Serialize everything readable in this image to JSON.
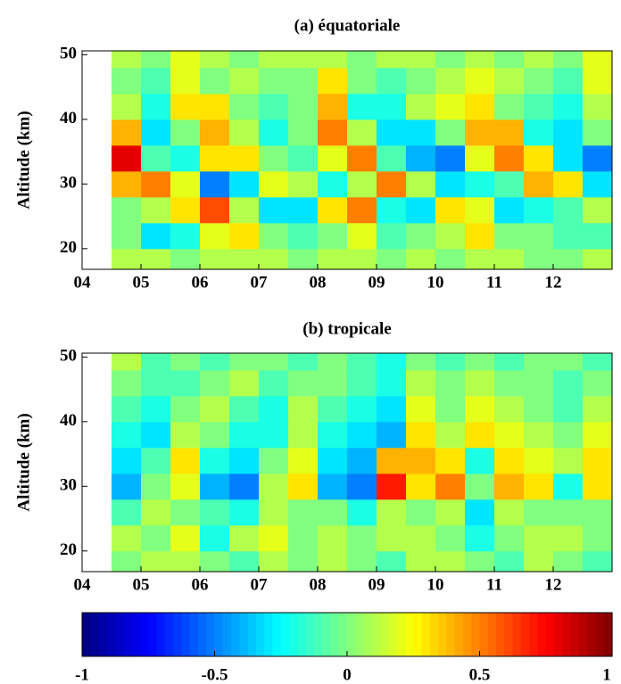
{
  "chart_data": [
    {
      "type": "heatmap",
      "title": "(a) équatoriale",
      "ylabel": "Altitude (km)",
      "x": [
        2004.75,
        2005.25,
        2005.75,
        2006.25,
        2006.75,
        2007.25,
        2007.75,
        2008.25,
        2008.75,
        2009.25,
        2009.75,
        2010.25,
        2010.75,
        2011.25,
        2011.75,
        2012.25,
        2012.75
      ],
      "y": [
        18,
        22,
        26,
        30,
        34,
        38,
        42,
        46,
        50
      ],
      "z": [
        [
          0.1,
          0.1,
          0,
          0.1,
          0.1,
          0.1,
          0,
          0.1,
          0.1,
          0,
          0.1,
          0,
          0.1,
          0.1,
          0,
          0,
          0.1
        ],
        [
          0,
          -0.3,
          -0.2,
          0.2,
          0.3,
          0,
          -0.1,
          0,
          0.2,
          -0.1,
          0,
          0.1,
          0.3,
          0,
          0,
          -0.1,
          -0.1
        ],
        [
          0,
          0.1,
          0.3,
          0.6,
          0.1,
          -0.3,
          -0.3,
          0.3,
          0.5,
          -0.2,
          -0.3,
          0.3,
          0.2,
          -0.3,
          -0.2,
          -0.1,
          0.1
        ],
        [
          0.4,
          0.5,
          0.2,
          -0.5,
          -0.3,
          0.2,
          0.1,
          -0.2,
          0.1,
          0.5,
          0.1,
          -0.3,
          -0.2,
          -0.1,
          0.4,
          0.3,
          -0.3
        ],
        [
          0.8,
          -0.1,
          -0.2,
          0.3,
          0.3,
          0,
          -0.1,
          0.2,
          0.5,
          -0.1,
          -0.4,
          -0.5,
          0.2,
          0.5,
          0.3,
          -0.3,
          -0.5
        ],
        [
          0.4,
          -0.3,
          0,
          0.4,
          0.1,
          -0.2,
          0,
          0.5,
          0.1,
          -0.3,
          -0.3,
          0,
          0.4,
          0.4,
          -0.2,
          -0.3,
          0
        ],
        [
          0.1,
          -0.2,
          0.3,
          0.3,
          0,
          -0.1,
          0,
          0.4,
          -0.2,
          -0.2,
          0.1,
          0.2,
          0.3,
          0,
          -0.1,
          -0.2,
          0.1
        ],
        [
          0,
          -0.1,
          0.2,
          0,
          0.1,
          0,
          0,
          0.3,
          0,
          -0.1,
          0,
          0.1,
          0.2,
          0.1,
          0,
          -0.1,
          0.2
        ],
        [
          0.1,
          0,
          0.2,
          0.1,
          0,
          0.1,
          0.1,
          0.1,
          0,
          0.1,
          0.1,
          0,
          0.1,
          0,
          0.1,
          0,
          0.2
        ]
      ],
      "xlim": [
        2004,
        2013
      ],
      "ylim": [
        16.8,
        50.6
      ],
      "xticks": [
        {
          "value": 2004,
          "label": "04"
        },
        {
          "value": 2005,
          "label": "05"
        },
        {
          "value": 2006,
          "label": "06"
        },
        {
          "value": 2007,
          "label": "07"
        },
        {
          "value": 2008,
          "label": "08"
        },
        {
          "value": 2009,
          "label": "09"
        },
        {
          "value": 2010,
          "label": "10"
        },
        {
          "value": 2011,
          "label": "11"
        },
        {
          "value": 2012,
          "label": "12"
        }
      ],
      "yticks": [
        20,
        30,
        40,
        50
      ],
      "colormap": "jet",
      "clim": [
        -1,
        1
      ]
    },
    {
      "type": "heatmap",
      "title": "(b) tropicale",
      "ylabel": "Altitude (km)",
      "x": [
        2004.75,
        2005.25,
        2005.75,
        2006.25,
        2006.75,
        2007.25,
        2007.75,
        2008.25,
        2008.75,
        2009.25,
        2009.75,
        2010.25,
        2010.75,
        2011.25,
        2011.75,
        2012.25,
        2012.75
      ],
      "y": [
        18,
        22,
        26,
        30,
        34,
        38,
        42,
        46,
        50
      ],
      "z": [
        [
          0,
          0.1,
          0.1,
          0,
          -0.1,
          0.1,
          0,
          0.1,
          0,
          -0.1,
          0.1,
          0.1,
          0,
          -0.1,
          0.1,
          0,
          -0.1
        ],
        [
          0.1,
          0,
          0.2,
          -0.2,
          0.1,
          0.2,
          0,
          0.1,
          0,
          0.1,
          0.1,
          0,
          -0.2,
          0,
          0.1,
          0.1,
          0
        ],
        [
          -0.1,
          0.1,
          0,
          -0.1,
          -0.2,
          0.1,
          0,
          0,
          -0.2,
          0.1,
          0,
          0.1,
          -0.3,
          0.1,
          0,
          0,
          0
        ],
        [
          -0.4,
          0,
          0.2,
          -0.4,
          -0.5,
          0.1,
          0.3,
          -0.4,
          -0.5,
          0.7,
          0.3,
          0.5,
          0,
          0.4,
          0.3,
          -0.2,
          0.3
        ],
        [
          -0.3,
          -0.1,
          0.3,
          -0.2,
          -0.3,
          0,
          0.2,
          -0.3,
          -0.4,
          0.4,
          0.4,
          0.3,
          -0.2,
          0.3,
          0.2,
          0.1,
          0.3
        ],
        [
          -0.2,
          -0.3,
          0.1,
          0,
          -0.2,
          -0.2,
          0.1,
          -0.2,
          -0.3,
          -0.4,
          0.3,
          0.1,
          0.3,
          0.2,
          0.1,
          0,
          0.2
        ],
        [
          -0.1,
          -0.2,
          0,
          0.1,
          -0.1,
          -0.2,
          0.1,
          -0.1,
          -0.2,
          -0.3,
          0.2,
          0,
          0.2,
          0.1,
          0,
          -0.1,
          0.1
        ],
        [
          0,
          -0.1,
          -0.1,
          0,
          0.1,
          -0.1,
          0,
          0,
          -0.1,
          -0.2,
          0.1,
          0,
          0.1,
          0,
          0,
          -0.1,
          0
        ],
        [
          0.1,
          -0.1,
          0,
          -0.1,
          0,
          0,
          -0.1,
          0,
          -0.1,
          -0.2,
          0,
          -0.1,
          0,
          -0.1,
          0,
          0,
          -0.1
        ]
      ],
      "xlim": [
        2004,
        2013
      ],
      "ylim": [
        16.8,
        50.6
      ],
      "xticks": [
        {
          "value": 2004,
          "label": "04"
        },
        {
          "value": 2005,
          "label": "05"
        },
        {
          "value": 2006,
          "label": "06"
        },
        {
          "value": 2007,
          "label": "07"
        },
        {
          "value": 2008,
          "label": "08"
        },
        {
          "value": 2009,
          "label": "09"
        },
        {
          "value": 2010,
          "label": "10"
        },
        {
          "value": 2011,
          "label": "11"
        },
        {
          "value": 2012,
          "label": "12"
        }
      ],
      "yticks": [
        20,
        30,
        40,
        50
      ],
      "colormap": "jet",
      "clim": [
        -1,
        1
      ]
    },
    {
      "type": "colorbar",
      "colormap": "jet",
      "xlim": [
        -1,
        1
      ],
      "xticks": [
        -1,
        -0.5,
        0,
        0.5,
        1
      ]
    }
  ]
}
